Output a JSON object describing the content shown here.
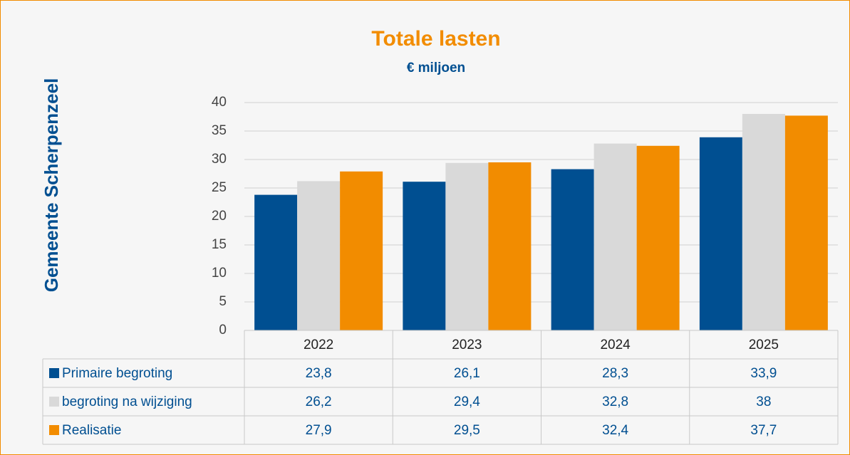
{
  "chart_data": {
    "type": "bar",
    "title": "Totale lasten",
    "subtitle": "€ miljoen",
    "annotation": "Gemeente Scherpenzeel",
    "categories": [
      "2022",
      "2023",
      "2024",
      "2025"
    ],
    "series": [
      {
        "name": "Primaire begroting",
        "color": "#004f91",
        "values": [
          23.8,
          26.1,
          28.3,
          33.9
        ],
        "value_labels": [
          "23,8",
          "26,1",
          "28,3",
          "33,9"
        ]
      },
      {
        "name": "begroting na wijziging",
        "color": "#d9d9d9",
        "values": [
          26.2,
          29.4,
          32.8,
          38
        ],
        "value_labels": [
          "26,2",
          "29,4",
          "32,8",
          "38"
        ]
      },
      {
        "name": "Realisatie",
        "color": "#f28c00",
        "values": [
          27.9,
          29.5,
          32.4,
          37.7
        ],
        "value_labels": [
          "27,9",
          "29,5",
          "32,4",
          "37,7"
        ]
      }
    ],
    "ylim": [
      0,
      40
    ],
    "yticks": [
      0,
      5,
      10,
      15,
      20,
      25,
      30,
      35,
      40
    ],
    "grid": true,
    "data_table": true
  }
}
